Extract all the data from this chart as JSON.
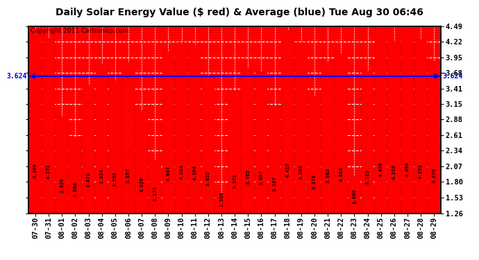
{
  "title": "Daily Solar Energy Value ($ red) & Average (blue) Tue Aug 30 06:46",
  "copyright": "Copyright 2011 Cartronics.com",
  "average": 3.624,
  "average_label": "3.624",
  "bar_color": "#FF0000",
  "avg_line_color": "#0000EE",
  "background_color": "#FFFFFF",
  "plot_bg_color": "#FF0000",
  "categories": [
    "07-30",
    "07-31",
    "08-01",
    "08-02",
    "08-03",
    "08-04",
    "08-05",
    "08-06",
    "08-07",
    "08-08",
    "08-09",
    "08-10",
    "08-11",
    "08-12",
    "08-13",
    "08-14",
    "08-15",
    "08-16",
    "08-17",
    "08-18",
    "08-19",
    "08-20",
    "08-21",
    "08-22",
    "08-23",
    "08-24",
    "08-25",
    "08-26",
    "08-27",
    "08-28",
    "08-29"
  ],
  "values": [
    4.369,
    4.271,
    2.929,
    2.568,
    3.471,
    3.824,
    3.552,
    3.857,
    3.029,
    2.175,
    4.047,
    4.204,
    4.164,
    3.622,
    1.596,
    3.371,
    3.765,
    3.697,
    3.107,
    4.417,
    4.205,
    3.27,
    3.862,
    4.01,
    1.886,
    3.723,
    4.459,
    4.219,
    4.49,
    4.251,
    3.879
  ],
  "ylim_min": 1.26,
  "ylim_max": 4.49,
  "yticks": [
    1.26,
    1.53,
    1.8,
    2.07,
    2.34,
    2.61,
    2.88,
    3.15,
    3.41,
    3.68,
    3.95,
    4.22,
    4.49
  ],
  "grid_color": "#CCCCCC",
  "title_fontsize": 10,
  "copyright_fontsize": 6.5,
  "bar_label_fontsize": 5.2,
  "tick_fontsize": 7.5,
  "bar_width": 0.92
}
